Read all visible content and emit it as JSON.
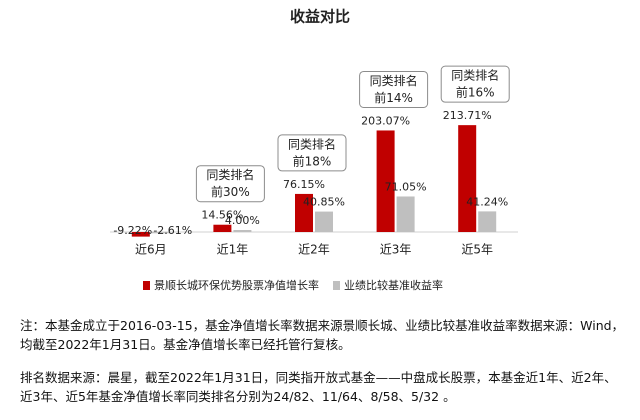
{
  "chart_data": {
    "type": "bar",
    "title": "收益对比",
    "categories": [
      "近6月",
      "近1年",
      "近2年",
      "近3年",
      "近5年"
    ],
    "series": [
      {
        "name": "景顺长城环保优势股票净值增长率",
        "color": "#c00000",
        "values": [
          -9.22,
          14.56,
          76.15,
          203.07,
          213.71
        ],
        "value_labels": [
          "-9.22%",
          "14.56%",
          "76.15%",
          "203.07%",
          "213.71%"
        ]
      },
      {
        "name": "业绩比较基准收益率",
        "color": "#bfbfbf",
        "values": [
          -2.61,
          4.0,
          40.85,
          71.05,
          41.24
        ],
        "value_labels": [
          "-2.61%",
          "4.00%",
          "40.85%",
          "71.05%",
          "41.24%"
        ]
      }
    ],
    "rank_boxes": [
      null,
      {
        "title": "同类排名",
        "rank": "前30%"
      },
      {
        "title": "同类排名",
        "rank": "前18%"
      },
      {
        "title": "同类排名",
        "rank": "前14%"
      },
      {
        "title": "同类排名",
        "rank": "前16%"
      }
    ],
    "ylim": [
      -20,
      240
    ],
    "legend": "bottom"
  },
  "notes": [
    "注：本基金成立于2016-03-15，基金净值增长率数据来源景顺长城、业绩比较基准收益率数据来源：Wind，均截至2022年1月31日。基金净值增长率已经托管行复核。",
    "排名数据来源：晨星，截至2022年1月31日，同类指开放式基金——中盘成长股票，本基金近1年、近2年、近3年、近5年基金净值增长率同类排名分别为24/82、11/64、8/58、5/32 。"
  ]
}
